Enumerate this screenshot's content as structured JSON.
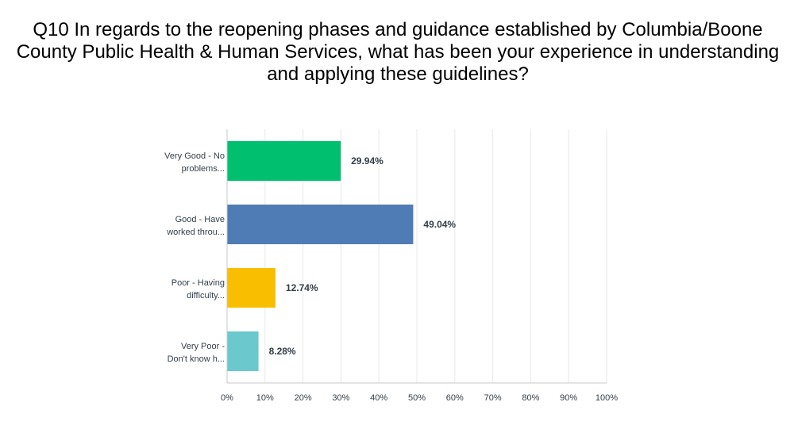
{
  "chart_data": {
    "type": "bar",
    "orientation": "horizontal",
    "title": "Q10 In regards to the reopening phases and guidance established by Columbia/Boone County Public Health & Human Services, what has been your experience in understanding and applying these guidelines?",
    "categories": [
      [
        "Very Good - No",
        "problems..."
      ],
      [
        "Good - Have",
        "worked throu..."
      ],
      [
        "Poor - Having",
        "difficulty..."
      ],
      [
        "Very Poor -",
        "Don't know h..."
      ]
    ],
    "values": [
      29.94,
      49.04,
      12.74,
      8.28
    ],
    "value_labels": [
      "29.94%",
      "49.04%",
      "12.74%",
      "8.28%"
    ],
    "colors": [
      "#00bf6f",
      "#507cb6",
      "#f9be00",
      "#6bc8cd"
    ],
    "xlim": [
      0,
      100
    ],
    "xticks": [
      "0%",
      "10%",
      "20%",
      "30%",
      "40%",
      "50%",
      "60%",
      "70%",
      "80%",
      "90%",
      "100%"
    ],
    "grid": true,
    "xlabel": "",
    "ylabel": ""
  }
}
